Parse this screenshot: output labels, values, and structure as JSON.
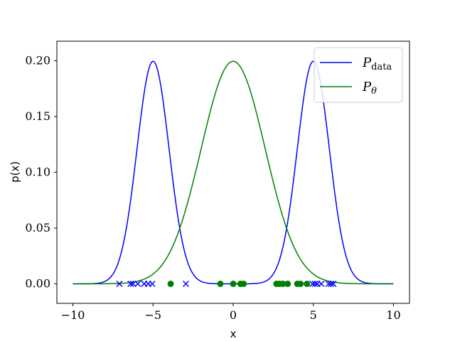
{
  "chart_data": {
    "type": "line",
    "xlabel": "x",
    "ylabel": "p(x)",
    "xlim": [
      -11,
      11
    ],
    "ylim": [
      -0.0175,
      0.2175
    ],
    "x_ticks": [
      -10,
      -5,
      0,
      5,
      10
    ],
    "x_tick_labels": [
      "−10",
      "−5",
      "0",
      "5",
      "10"
    ],
    "y_ticks": [
      0.0,
      0.05,
      0.1,
      0.15,
      0.2
    ],
    "y_tick_labels": [
      "0.00",
      "0.05",
      "0.10",
      "0.15",
      "0.20"
    ],
    "grid": false,
    "legend_position": "top-right",
    "series": [
      {
        "name": "P_data",
        "legend_main": "P",
        "legend_sub": "data",
        "color": "#0000ff",
        "kind": "mixture of two gaussians",
        "components": [
          {
            "mean": -5,
            "std": 1,
            "weight": 0.5
          },
          {
            "mean": 5,
            "std": 1,
            "weight": 0.5
          }
        ],
        "x_range": [
          -10,
          10
        ],
        "peak_values": [
          {
            "x": -5,
            "y": 0.2
          },
          {
            "x": 5,
            "y": 0.197
          }
        ]
      },
      {
        "name": "P_theta",
        "legend_main": "P",
        "legend_sub": "θ",
        "color": "#008000",
        "kind": "gaussian",
        "components": [
          {
            "mean": 0,
            "std": 2,
            "weight": 1
          }
        ],
        "x_range": [
          -10,
          10
        ],
        "peak_values": [
          {
            "x": 0,
            "y": 0.2
          }
        ]
      }
    ],
    "samples": [
      {
        "series": "P_data",
        "marker": "x",
        "color": "#0000ff",
        "x": [
          -7.1,
          -6.4,
          -6.25,
          -5.95,
          -5.55,
          -5.3,
          -5.05,
          -2.95,
          4.95,
          5.1,
          5.25,
          5.5,
          5.95,
          6.1,
          6.25
        ],
        "y": 0
      },
      {
        "series": "P_theta",
        "marker": "o",
        "color": "#008000",
        "x": [
          -3.9,
          -0.8,
          0.0,
          0.45,
          0.65,
          2.7,
          2.9,
          3.1,
          3.4,
          4.0,
          4.2,
          4.6
        ],
        "y": 0
      }
    ]
  }
}
